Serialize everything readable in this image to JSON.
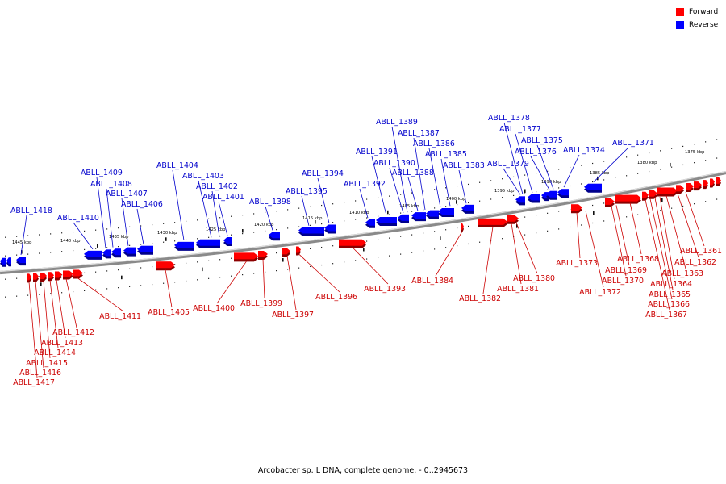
{
  "legend": [
    {
      "label": "Forward",
      "color": "#ff0000"
    },
    {
      "label": "Reverse",
      "color": "#0000ff"
    }
  ],
  "caption": "Arcobacter sp. L DNA, complete genome. - 0..2945673",
  "colors": {
    "forward": "#ff0000",
    "reverse": "#0000ff",
    "forward_label": "#cc0000",
    "reverse_label": "#0000cc",
    "backbone": "#8a8a8a"
  },
  "kbp_ticks": [
    "1445 kbp",
    "1440 kbp",
    "1435 kbp",
    "1430 kbp",
    "1425 kbp",
    "1420 kbp",
    "1415 kbp",
    "1410 kbp",
    "1405 kbp",
    "1400 kbp",
    "1395 kbp",
    "1390 kbp",
    "1385 kbp",
    "1380 kbp",
    "1375 kbp"
  ],
  "reverse_genes": [
    "ABLL_1418",
    "ABLL_1410",
    "ABLL_1409",
    "ABLL_1408",
    "ABLL_1407",
    "ABLL_1406",
    "ABLL_1404",
    "ABLL_1403",
    "ABLL_1402",
    "ABLL_1401",
    "ABLL_1398",
    "ABLL_1395",
    "ABLL_1394",
    "ABLL_1392",
    "ABLL_1391",
    "ABLL_1390",
    "ABLL_1389",
    "ABLL_1388",
    "ABLL_1387",
    "ABLL_1386",
    "ABLL_1385",
    "ABLL_1383",
    "ABLL_1379",
    "ABLL_1378",
    "ABLL_1377",
    "ABLL_1376",
    "ABLL_1375",
    "ABLL_1374",
    "ABLL_1371"
  ],
  "forward_genes": [
    "ABLL_1417",
    "ABLL_1416",
    "ABLL_1415",
    "ABLL_1414",
    "ABLL_1413",
    "ABLL_1412",
    "ABLL_1411",
    "ABLL_1405",
    "ABLL_1400",
    "ABLL_1399",
    "ABLL_1397",
    "ABLL_1396",
    "ABLL_1393",
    "ABLL_1384",
    "ABLL_1382",
    "ABLL_1381",
    "ABLL_1380",
    "ABLL_1373",
    "ABLL_1372",
    "ABLL_1370",
    "ABLL_1369",
    "ABLL_1368",
    "ABLL_1367",
    "ABLL_1366",
    "ABLL_1365",
    "ABLL_1364",
    "ABLL_1363",
    "ABLL_1362",
    "ABLL_1361"
  ]
}
